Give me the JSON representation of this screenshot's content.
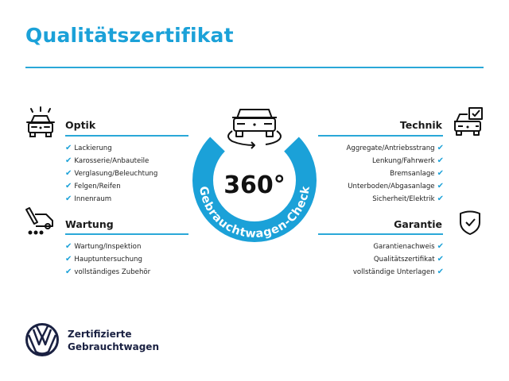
{
  "title": "Qualitätszertifikat",
  "center": {
    "value": "360°",
    "ring_text": "Gebrauchtwagen-Check",
    "ring_color": "#1ba1d8",
    "icon": "car-rotate-icon"
  },
  "sections": {
    "optik": {
      "heading": "Optik",
      "icon": "car-lights-icon",
      "items": [
        "Lackierung",
        "Karosserie/Anbauteile",
        "Verglasung/Beleuchtung",
        "Felgen/Reifen",
        "Innenraum"
      ]
    },
    "wartung": {
      "heading": "Wartung",
      "icon": "service-van-icon",
      "items": [
        "Wartung/Inspektion",
        "Hauptuntersuchung",
        "vollständiges Zubehör"
      ]
    },
    "technik": {
      "heading": "Technik",
      "icon": "car-checkbox-icon",
      "items": [
        "Aggregate/Antriebsstrang",
        "Lenkung/Fahrwerk",
        "Bremsanlage",
        "Unterboden/Abgasanlage",
        "Sicherheit/Elektrik"
      ]
    },
    "garantie": {
      "heading": "Garantie",
      "icon": "shield-check-icon",
      "items": [
        "Garantienachweis",
        "Qualitätszertifikat",
        "vollständige Unterlagen"
      ]
    }
  },
  "check_mark": "✔",
  "brand": {
    "line1": "Zertifizierte",
    "line2": "Gebrauchtwagen",
    "color": "#1a2142"
  },
  "accent": "#1ba1d8"
}
